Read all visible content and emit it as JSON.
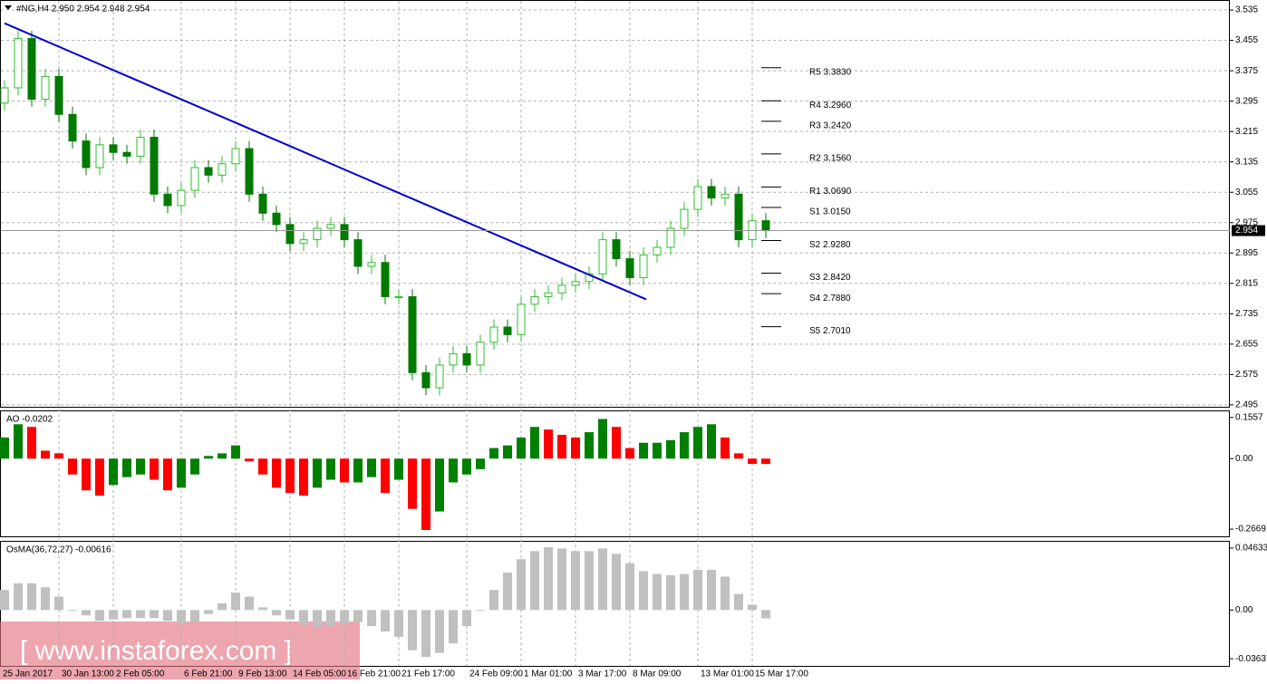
{
  "chart_data": [
    {
      "type": "candlestick",
      "title": "#NG,H4  2.950 2.954 2.948 2.954",
      "categories": [
        "25 Jan 2017",
        null,
        null,
        null,
        "30 Jan 13:00",
        null,
        null,
        null,
        "2 Feb 05:00",
        null,
        null,
        null,
        null,
        "6 Feb 21:00",
        null,
        null,
        null,
        "9 Feb 13:00",
        null,
        null,
        null,
        "14 Feb 05:00",
        null,
        null,
        null,
        "16 Feb 21:00",
        null,
        null,
        null,
        "21 Feb 17:00",
        null,
        null,
        null,
        null,
        "24 Feb 09:00",
        null,
        null,
        null,
        "1 Mar 01:00",
        null,
        null,
        null,
        "3 Mar 17:00",
        null,
        null,
        null,
        "8 Mar 09:00",
        null,
        null,
        null,
        null,
        "13 Mar 01:00",
        null,
        null,
        null,
        "15 Mar 17:00",
        null
      ],
      "open": [
        3.29,
        3.33,
        3.46,
        3.3,
        3.36,
        3.26,
        3.19,
        3.12,
        3.18,
        3.16,
        3.15,
        3.2,
        3.05,
        3.02,
        3.06,
        3.12,
        3.1,
        3.13,
        3.17,
        3.05,
        3.0,
        2.97,
        2.92,
        2.93,
        2.96,
        2.97,
        2.93,
        2.86,
        2.87,
        2.78,
        2.78,
        2.58,
        2.54,
        2.6,
        2.63,
        2.6,
        2.66,
        2.7,
        2.68,
        2.76,
        2.78,
        2.79,
        2.81,
        2.82,
        2.84,
        2.93,
        2.88,
        2.83,
        2.89,
        2.91,
        2.96,
        3.01,
        3.07,
        3.04,
        3.05,
        2.93,
        2.98
      ],
      "high": [
        3.35,
        3.48,
        3.48,
        3.38,
        3.38,
        3.28,
        3.21,
        3.2,
        3.2,
        3.18,
        3.22,
        3.22,
        3.07,
        3.08,
        3.14,
        3.14,
        3.15,
        3.19,
        3.19,
        3.07,
        3.02,
        2.99,
        2.95,
        2.98,
        2.99,
        2.99,
        2.95,
        2.89,
        2.89,
        2.8,
        2.8,
        2.6,
        2.62,
        2.65,
        2.65,
        2.68,
        2.72,
        2.72,
        2.78,
        2.8,
        2.81,
        2.83,
        2.84,
        2.86,
        2.95,
        2.95,
        2.9,
        2.91,
        2.93,
        2.98,
        3.03,
        3.09,
        3.09,
        3.07,
        3.07,
        3.0,
        3.0
      ],
      "low": [
        3.27,
        3.31,
        3.28,
        3.28,
        3.24,
        3.17,
        3.1,
        3.1,
        3.14,
        3.13,
        3.13,
        3.03,
        3.0,
        3.0,
        3.04,
        3.08,
        3.08,
        3.11,
        3.03,
        2.98,
        2.95,
        2.9,
        2.9,
        2.91,
        2.94,
        2.91,
        2.84,
        2.84,
        2.76,
        2.76,
        2.56,
        2.52,
        2.52,
        2.58,
        2.58,
        2.58,
        2.64,
        2.66,
        2.66,
        2.74,
        2.76,
        2.77,
        2.79,
        2.8,
        2.82,
        2.86,
        2.81,
        2.81,
        2.87,
        2.89,
        2.94,
        2.99,
        3.02,
        3.02,
        2.91,
        2.91,
        2.934
      ],
      "close": [
        3.33,
        3.46,
        3.3,
        3.36,
        3.26,
        3.19,
        3.12,
        3.18,
        3.16,
        3.15,
        3.2,
        3.05,
        3.02,
        3.06,
        3.12,
        3.1,
        3.13,
        3.17,
        3.05,
        3.0,
        2.97,
        2.92,
        2.93,
        2.96,
        2.97,
        2.93,
        2.86,
        2.87,
        2.78,
        2.78,
        2.58,
        2.54,
        2.6,
        2.63,
        2.6,
        2.66,
        2.7,
        2.68,
        2.76,
        2.78,
        2.79,
        2.81,
        2.82,
        2.84,
        2.93,
        2.88,
        2.83,
        2.89,
        2.91,
        2.96,
        3.01,
        3.07,
        3.04,
        3.05,
        2.93,
        2.98,
        2.954
      ],
      "up_color": "#2fbf2f",
      "down_color": "#007a00",
      "ylim": [
        2.49,
        3.559
      ],
      "yticks": [
        3.535,
        3.455,
        3.375,
        3.295,
        3.215,
        3.135,
        3.055,
        2.975,
        2.895,
        2.815,
        2.735,
        2.655,
        2.575,
        2.495
      ],
      "grid": true,
      "trendline": {
        "x": [
          0,
          47.2
        ],
        "values": [
          3.5,
          2.773
        ],
        "color": "#0000cd"
      },
      "pivots": [
        {
          "value": 3.383,
          "label": "R5 3.3830"
        },
        {
          "value": 3.296,
          "label": "R4 3.2960"
        },
        {
          "value": 3.242,
          "label": "R3 3.2420"
        },
        {
          "value": 3.156,
          "label": "R2 3.1560"
        },
        {
          "value": 3.069,
          "label": "R1 3.0690"
        },
        {
          "value": 3.015,
          "label": "S1 3.0150"
        },
        {
          "value": 2.928,
          "label": "S2 2.9280"
        },
        {
          "value": 2.842,
          "label": "S3 2.8420"
        },
        {
          "value": 2.788,
          "label": "S4 2.7880"
        },
        {
          "value": 2.701,
          "label": "S5 2.7010"
        }
      ],
      "last_price": 2.954
    },
    {
      "type": "histogram",
      "title": "AO -0.0202",
      "values": [
        0.08,
        0.13,
        0.12,
        0.03,
        0.02,
        -0.06,
        -0.12,
        -0.14,
        -0.1,
        -0.07,
        -0.06,
        -0.08,
        -0.12,
        -0.11,
        -0.06,
        0.01,
        0.02,
        0.05,
        -0.01,
        -0.06,
        -0.11,
        -0.13,
        -0.14,
        -0.11,
        -0.08,
        -0.09,
        -0.09,
        -0.07,
        -0.13,
        -0.08,
        -0.19,
        -0.27,
        -0.2,
        -0.09,
        -0.06,
        -0.04,
        0.04,
        0.05,
        0.08,
        0.12,
        0.11,
        0.09,
        0.08,
        0.1,
        0.15,
        0.12,
        0.04,
        0.06,
        0.06,
        0.07,
        0.1,
        0.12,
        0.13,
        0.08,
        0.02,
        -0.02,
        -0.0202
      ],
      "up_color": "#008000",
      "down_color": "#ff0000",
      "ylim": [
        -0.294,
        0.179
      ],
      "yticks": [
        0.1557,
        {
          "value": 0,
          "label": "0.00"
        },
        -0.2669
      ]
    },
    {
      "type": "histogram",
      "title": "OsMA(36,72,27) -0.00616",
      "values": [
        0.015,
        0.02,
        0.02,
        0.017,
        0.01,
        0.0,
        -0.004,
        -0.008,
        -0.007,
        -0.006,
        -0.006,
        -0.006,
        -0.008,
        -0.01,
        -0.009,
        -0.003,
        0.005,
        0.013,
        0.01,
        0.002,
        -0.004,
        -0.007,
        -0.011,
        -0.013,
        -0.012,
        -0.01,
        -0.009,
        -0.012,
        -0.016,
        -0.02,
        -0.03,
        -0.035,
        -0.032,
        -0.025,
        -0.012,
        0.0,
        0.015,
        0.028,
        0.038,
        0.044,
        0.047,
        0.046,
        0.044,
        0.044,
        0.046,
        0.042,
        0.035,
        0.029,
        0.027,
        0.026,
        0.027,
        0.03,
        0.03,
        0.025,
        0.012,
        0.004,
        -0.00616
      ],
      "up_color": "#c0c0c0",
      "down_color": "#c0c0c0",
      "ylim": [
        -0.0417,
        0.051
      ],
      "yticks": [
        0.04633,
        {
          "value": 0,
          "label": "0.00"
        },
        -0.03637
      ]
    }
  ],
  "watermark": "[ www.instaforex.com ]"
}
